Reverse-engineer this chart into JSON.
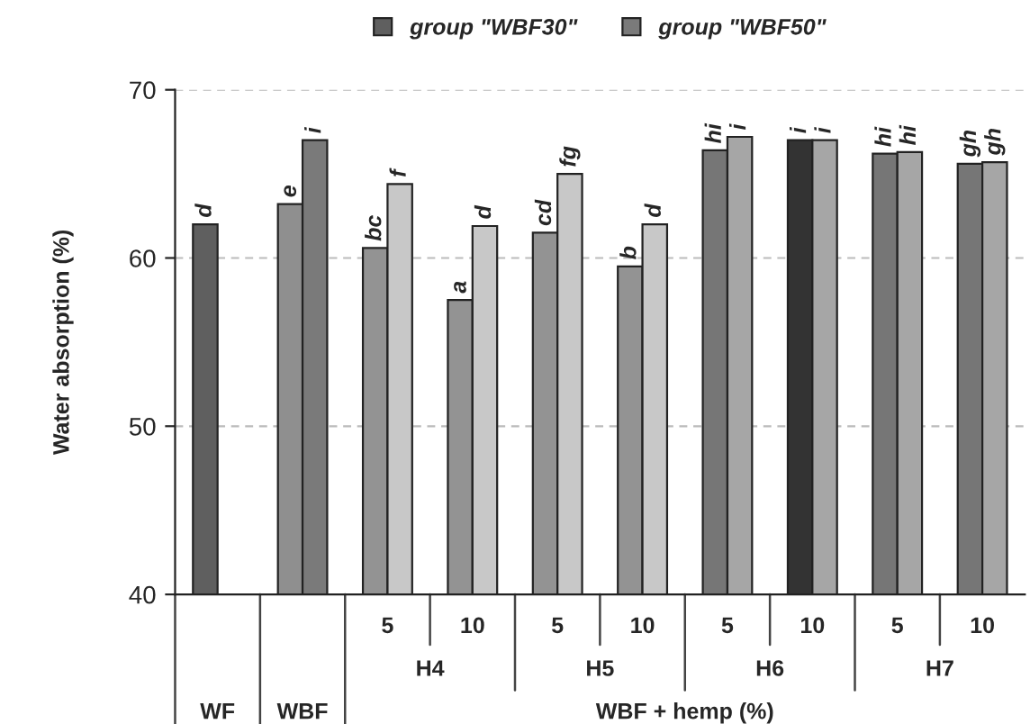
{
  "chart_data": {
    "type": "bar",
    "ylabel": "Water absorption (%)",
    "xlabel": "WBF + hemp (%)",
    "categories": [
      null,
      null,
      "5",
      "10",
      "5",
      "10",
      "5",
      "10",
      "5",
      "10"
    ],
    "series": [
      {
        "name": "group \"WBF30\"",
        "colors": [
          "#5f5f5f",
          "#8f8f8f",
          "#939393",
          "#939393",
          "#939393",
          "#939393",
          "#767676",
          "#333333",
          "#767676",
          "#767676"
        ],
        "values": [
          62.0,
          63.2,
          60.6,
          57.5,
          61.5,
          59.5,
          66.4,
          67.0,
          66.2,
          65.6
        ],
        "value_labels": [
          "d",
          "e",
          "bc",
          "a",
          "cd",
          "b",
          "hi",
          "i",
          "hi",
          "gh"
        ]
      },
      {
        "name": "group \"WBF50\"",
        "colors": [
          null,
          "#7a7a7a",
          "#c8c8c8",
          "#c8c8c8",
          "#c8c8c8",
          "#c8c8c8",
          "#a6a6a6",
          "#a6a6a6",
          "#a6a6a6",
          "#a6a6a6"
        ],
        "values": [
          null,
          67.0,
          64.4,
          61.9,
          65.0,
          62.0,
          67.2,
          67.0,
          66.3,
          65.7
        ],
        "value_labels": [
          null,
          "i",
          "f",
          "d",
          "fg",
          "d",
          "i",
          "i",
          "hi",
          "gh"
        ]
      }
    ],
    "annotations": [
      "WF",
      "WBF",
      "H4",
      "H5",
      "H6",
      "H7"
    ],
    "ylim": [
      40,
      70
    ],
    "yticks": [
      40,
      50,
      60,
      70
    ],
    "grid": "y",
    "legend": "top"
  }
}
